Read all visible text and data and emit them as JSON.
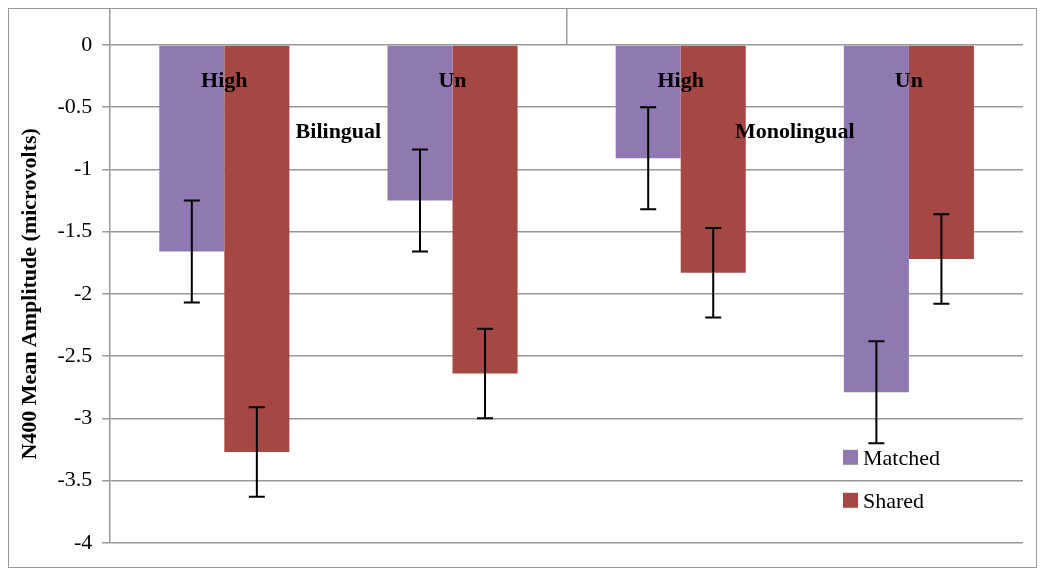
{
  "chart_data": {
    "type": "bar",
    "ylabel": "N400 Mean Amplitude (microvolts)",
    "categories": [
      "High",
      "Un",
      "High",
      "Un"
    ],
    "annotations": [
      "Bilingual",
      "Monolingual"
    ],
    "series": [
      {
        "name": "Matched",
        "color": "#8f79b0",
        "values": [
          -1.66,
          -1.25,
          -0.91,
          -2.79
        ],
        "errors": [
          0.41,
          0.41,
          0.41,
          0.41
        ]
      },
      {
        "name": "Shared",
        "color": "#a54843",
        "values": [
          -3.27,
          -2.64,
          -1.83,
          -1.72
        ],
        "errors": [
          0.36,
          0.36,
          0.36,
          0.36
        ]
      }
    ],
    "ylim": [
      -4,
      0
    ],
    "yticks": [
      0,
      -0.5,
      -1,
      -1.5,
      -2,
      -2.5,
      -3,
      -3.5,
      -4
    ],
    "grid": "y",
    "legend": "bottom right"
  }
}
